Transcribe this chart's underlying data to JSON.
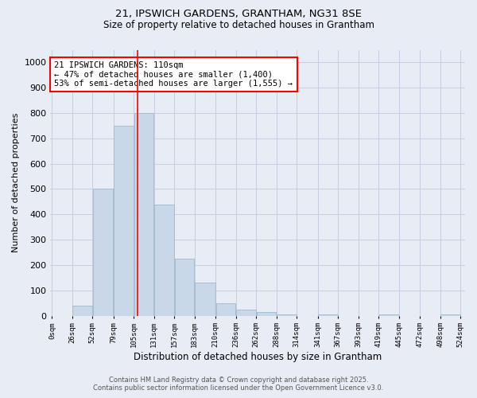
{
  "title_line1": "21, IPSWICH GARDENS, GRANTHAM, NG31 8SE",
  "title_line2": "Size of property relative to detached houses in Grantham",
  "xlabel": "Distribution of detached houses by size in Grantham",
  "ylabel": "Number of detached properties",
  "bin_labels": [
    "0sqm",
    "26sqm",
    "52sqm",
    "79sqm",
    "105sqm",
    "131sqm",
    "157sqm",
    "183sqm",
    "210sqm",
    "236sqm",
    "262sqm",
    "288sqm",
    "314sqm",
    "341sqm",
    "367sqm",
    "393sqm",
    "419sqm",
    "445sqm",
    "472sqm",
    "498sqm",
    "524sqm"
  ],
  "bin_edges": [
    0,
    26,
    52,
    79,
    105,
    131,
    157,
    183,
    210,
    236,
    262,
    288,
    314,
    341,
    367,
    393,
    419,
    445,
    472,
    498,
    524
  ],
  "bar_heights": [
    0,
    40,
    500,
    750,
    800,
    440,
    225,
    130,
    50,
    25,
    15,
    5,
    0,
    5,
    0,
    0,
    5,
    0,
    0,
    5,
    0
  ],
  "bar_color": "#c8d8e8",
  "bar_edgecolor": "#a0b8cc",
  "grid_color": "#c8cce0",
  "background_color": "#e8edf5",
  "vline_x": 110,
  "vline_color": "red",
  "annotation_text": "21 IPSWICH GARDENS: 110sqm\n← 47% of detached houses are smaller (1,400)\n53% of semi-detached houses are larger (1,555) →",
  "annotation_box_facecolor": "white",
  "annotation_box_edgecolor": "red",
  "ylim": [
    0,
    1050
  ],
  "yticks": [
    0,
    100,
    200,
    300,
    400,
    500,
    600,
    700,
    800,
    900,
    1000
  ],
  "footer_line1": "Contains HM Land Registry data © Crown copyright and database right 2025.",
  "footer_line2": "Contains public sector information licensed under the Open Government Licence v3.0."
}
